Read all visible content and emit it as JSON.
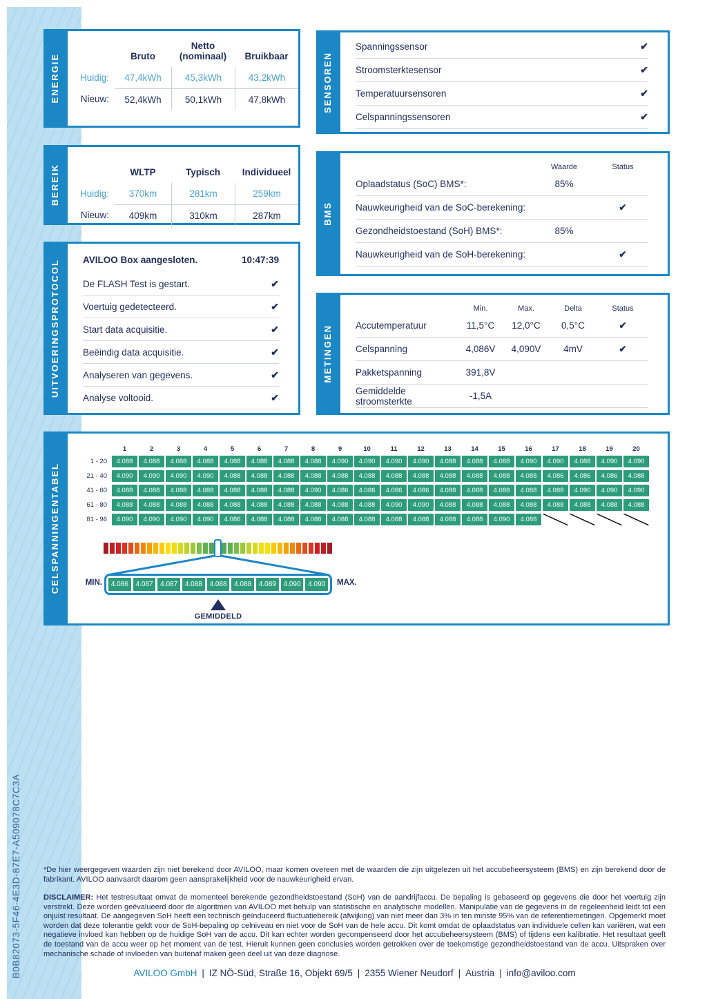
{
  "report_id": "B0B82073-5F46-4E3D-87E7-A509078C7C3A",
  "icons": {
    "check": "✔"
  },
  "colors": {
    "blue": "#1c87c5",
    "navy": "#222e5f",
    "light_blue": "#4ba1d9",
    "green": "#2d9d79"
  },
  "energie": {
    "tab": "ENERGIE",
    "headers": [
      "Bruto",
      "Netto (nominaal)",
      "Bruikbaar"
    ],
    "rows": [
      {
        "label": "Huidig:",
        "values": [
          "47,4kWh",
          "45,3kWh",
          "43,2kWh"
        ],
        "highlight": true
      },
      {
        "label": "Nieuw:",
        "values": [
          "52,4kWh",
          "50,1kWh",
          "47,8kWh"
        ],
        "highlight": false
      }
    ]
  },
  "bereik": {
    "tab": "BEREIK",
    "headers": [
      "WLTP",
      "Typisch",
      "Individueel"
    ],
    "rows": [
      {
        "label": "Huidig:",
        "values": [
          "370km",
          "281km",
          "259km"
        ],
        "highlight": true
      },
      {
        "label": "Nieuw:",
        "values": [
          "409km",
          "310km",
          "287km"
        ],
        "highlight": false
      }
    ]
  },
  "sensoren": {
    "tab": "SENSOREN",
    "items": [
      "Spanningssensor",
      "Stroomsterktesensor",
      "Temperatuursensoren",
      "Celspanningssensoren"
    ]
  },
  "bms": {
    "tab": "BMS",
    "col_headers": [
      "Waarde",
      "Status"
    ],
    "rows": [
      {
        "label": "Oplaadstatus (SoC) BMS*:",
        "value": "85%",
        "check": false
      },
      {
        "label": "Nauwkeurigheid van de SoC-berekening:",
        "value": "",
        "check": true
      },
      {
        "label": "Gezondheidstoestand (SoH) BMS*:",
        "value": "85%",
        "check": false
      },
      {
        "label": "Nauwkeurigheid van de SoH-berekening:",
        "value": "",
        "check": true
      }
    ]
  },
  "protocol": {
    "tab": "UITVOERINGSPROTOCOL",
    "title": "AVILOO Box aangesloten.",
    "time": "10:47:39",
    "steps": [
      "De FLASH Test is gestart.",
      "Voertuig gedetecteerd.",
      "Start data acquisitie.",
      "Beëindig data acquisitie.",
      "Analyseren van gegevens.",
      "Analyse voltooid."
    ]
  },
  "metingen": {
    "tab": "METINGEN",
    "col_headers": [
      "Min.",
      "Max.",
      "Delta",
      "Status"
    ],
    "rows": [
      {
        "label": "Accutemperatuur",
        "min": "11,5°C",
        "max": "12,0°C",
        "delta": "0,5°C",
        "check": true
      },
      {
        "label": "Celspanning",
        "min": "4,086V",
        "max": "4,090V",
        "delta": "4mV",
        "check": true
      },
      {
        "label": "Pakketspanning",
        "min": "391,8V",
        "max": "",
        "delta": "",
        "check": false
      },
      {
        "label": "Gemiddelde stroomsterkte",
        "min": "-1,5A",
        "max": "",
        "delta": "",
        "check": false
      }
    ]
  },
  "celltable": {
    "tab": "CELSPANNINGENTABEL",
    "col_numbers": [
      "1",
      "2",
      "3",
      "4",
      "5",
      "6",
      "7",
      "8",
      "9",
      "10",
      "11",
      "12",
      "13",
      "14",
      "15",
      "16",
      "17",
      "18",
      "19",
      "20"
    ],
    "rows": [
      {
        "label": "1 - 20",
        "values": [
          "4.088",
          "4.088",
          "4.088",
          "4.088",
          "4.088",
          "4.088",
          "4.088",
          "4.088",
          "4.090",
          "4.090",
          "4.090",
          "4.090",
          "4.088",
          "4.088",
          "4.088",
          "4.090",
          "4.090",
          "4.088",
          "4.090",
          "4.090"
        ]
      },
      {
        "label": "21 - 40",
        "values": [
          "4.090",
          "4.090",
          "4.090",
          "4.090",
          "4.088",
          "4.088",
          "4.088",
          "4.088",
          "4.088",
          "4.088",
          "4.088",
          "4.088",
          "4.088",
          "4.088",
          "4.088",
          "4.088",
          "4.086",
          "4.086",
          "4.086",
          "4.088"
        ]
      },
      {
        "label": "41 - 60",
        "values": [
          "4.088",
          "4.088",
          "4.088",
          "4.088",
          "4.088",
          "4.088",
          "4.088",
          "4.090",
          "4.086",
          "4.086",
          "4.086",
          "4.086",
          "4.088",
          "4.088",
          "4.088",
          "4.088",
          "4.088",
          "4.090",
          "4.090",
          "4.090"
        ]
      },
      {
        "label": "61 - 80",
        "values": [
          "4.088",
          "4.088",
          "4.088",
          "4.088",
          "4.088",
          "4.088",
          "4.088",
          "4.088",
          "4.088",
          "4.088",
          "4.090",
          "4.090",
          "4.088",
          "4.088",
          "4.088",
          "4.088",
          "4.088",
          "4.088",
          "4.088",
          "4.088"
        ]
      },
      {
        "label": "81 - 96",
        "values": [
          "4.090",
          "4.090",
          "4.090",
          "4.090",
          "4.086",
          "4.088",
          "4.088",
          "4.088",
          "4.088",
          "4.088",
          "4.088",
          "4.088",
          "4.088",
          "4.088",
          "4.090",
          "4.088",
          null,
          null,
          null,
          null
        ]
      }
    ],
    "scale_colors": [
      "#a31c1f",
      "#c01e24",
      "#d02026",
      "#d63722",
      "#e04e1d",
      "#e96a16",
      "#f0860e",
      "#f5a007",
      "#f8b703",
      "#fbcb01",
      "#fcdf04",
      "#f0df10",
      "#d8da1e",
      "#bcd32c",
      "#9cc93a",
      "#7cbd47",
      "#60b150",
      "#4ea955",
      "#47a658",
      "#4ea955",
      "#60b150",
      "#7cbd47",
      "#9cc93a",
      "#bcd32c",
      "#d8da1e",
      "#f0df10",
      "#fcdf04",
      "#fbcb01",
      "#f8b703",
      "#f5a007",
      "#f0860e",
      "#e96a16",
      "#e04e1d",
      "#d63722",
      "#d02026",
      "#c01e24",
      "#a31c1f"
    ],
    "scale_highlight_index": 18,
    "callout": {
      "min_label": "MIN.",
      "max_label": "MAX.",
      "values": [
        "4.086",
        "4.087",
        "4.087",
        "4.088",
        "4.088",
        "4.088",
        "4.089",
        "4.090",
        "4.090"
      ],
      "avg_label": "GEMIDDELD"
    }
  },
  "footnote": "*De hier weergegeven waarden zijn niet berekend door AVILOO, maar komen overeen met de waarden die zijn uitgelezen uit het accubeheersysteem (BMS) en zijn berekend door de fabrikant. AVILOO aanvaardt daarom geen aansprakelijkheid voor de nauwkeurigheid ervan.",
  "disclaimer_label": "DISCLAIMER:",
  "disclaimer": " Het testresultaat omvat de momenteel berekende gezondheidstoestand (SoH) van de aandrijfaccu. De bepaling is gebaseerd op gegevens die door het voertuig zijn verstrekt. Deze worden geëvalueerd door de algoritmen van AVILOO met behulp van statistische en analytische modellen. Manipulatie van de gegevens in de regeleenheid leidt tot een onjuist resultaat. De aangegeven SoH heeft een technisch geïnduceerd fluctuatiebereik (afwijking) van niet meer dan 3% in ten minste 95% van de referentiemetingen. Opgemerkt moet worden dat deze tolerantie geldt voor de SoH-bepaling op celniveau en niet voor de SoH van de hele accu. Dit komt omdat de oplaadstatus van individuele cellen kan variëren, wat een negatieve invloed kan hebben op de huidige SoH van de accu. Dit kan echter worden gecompenseerd door het accubeheersysteem (BMS) of tijdens een kalibratie. Het resultaat geeft de toestand van de accu weer op het moment van de test. Hieruit kunnen geen conclusies worden getrokken over de toekomstige gezondheidstoestand van de accu. Uitspraken over mechanische schade of invloeden van buitenaf maken geen deel uit van deze diagnose.",
  "footer": {
    "company": "AVILOO GmbH",
    "separator": "|",
    "address": "IZ NÖ-Süd, Straße 16, Objekt 69/5",
    "city": "2355 Wiener Neudorf",
    "country": "Austria",
    "email": "info@aviloo.com"
  }
}
